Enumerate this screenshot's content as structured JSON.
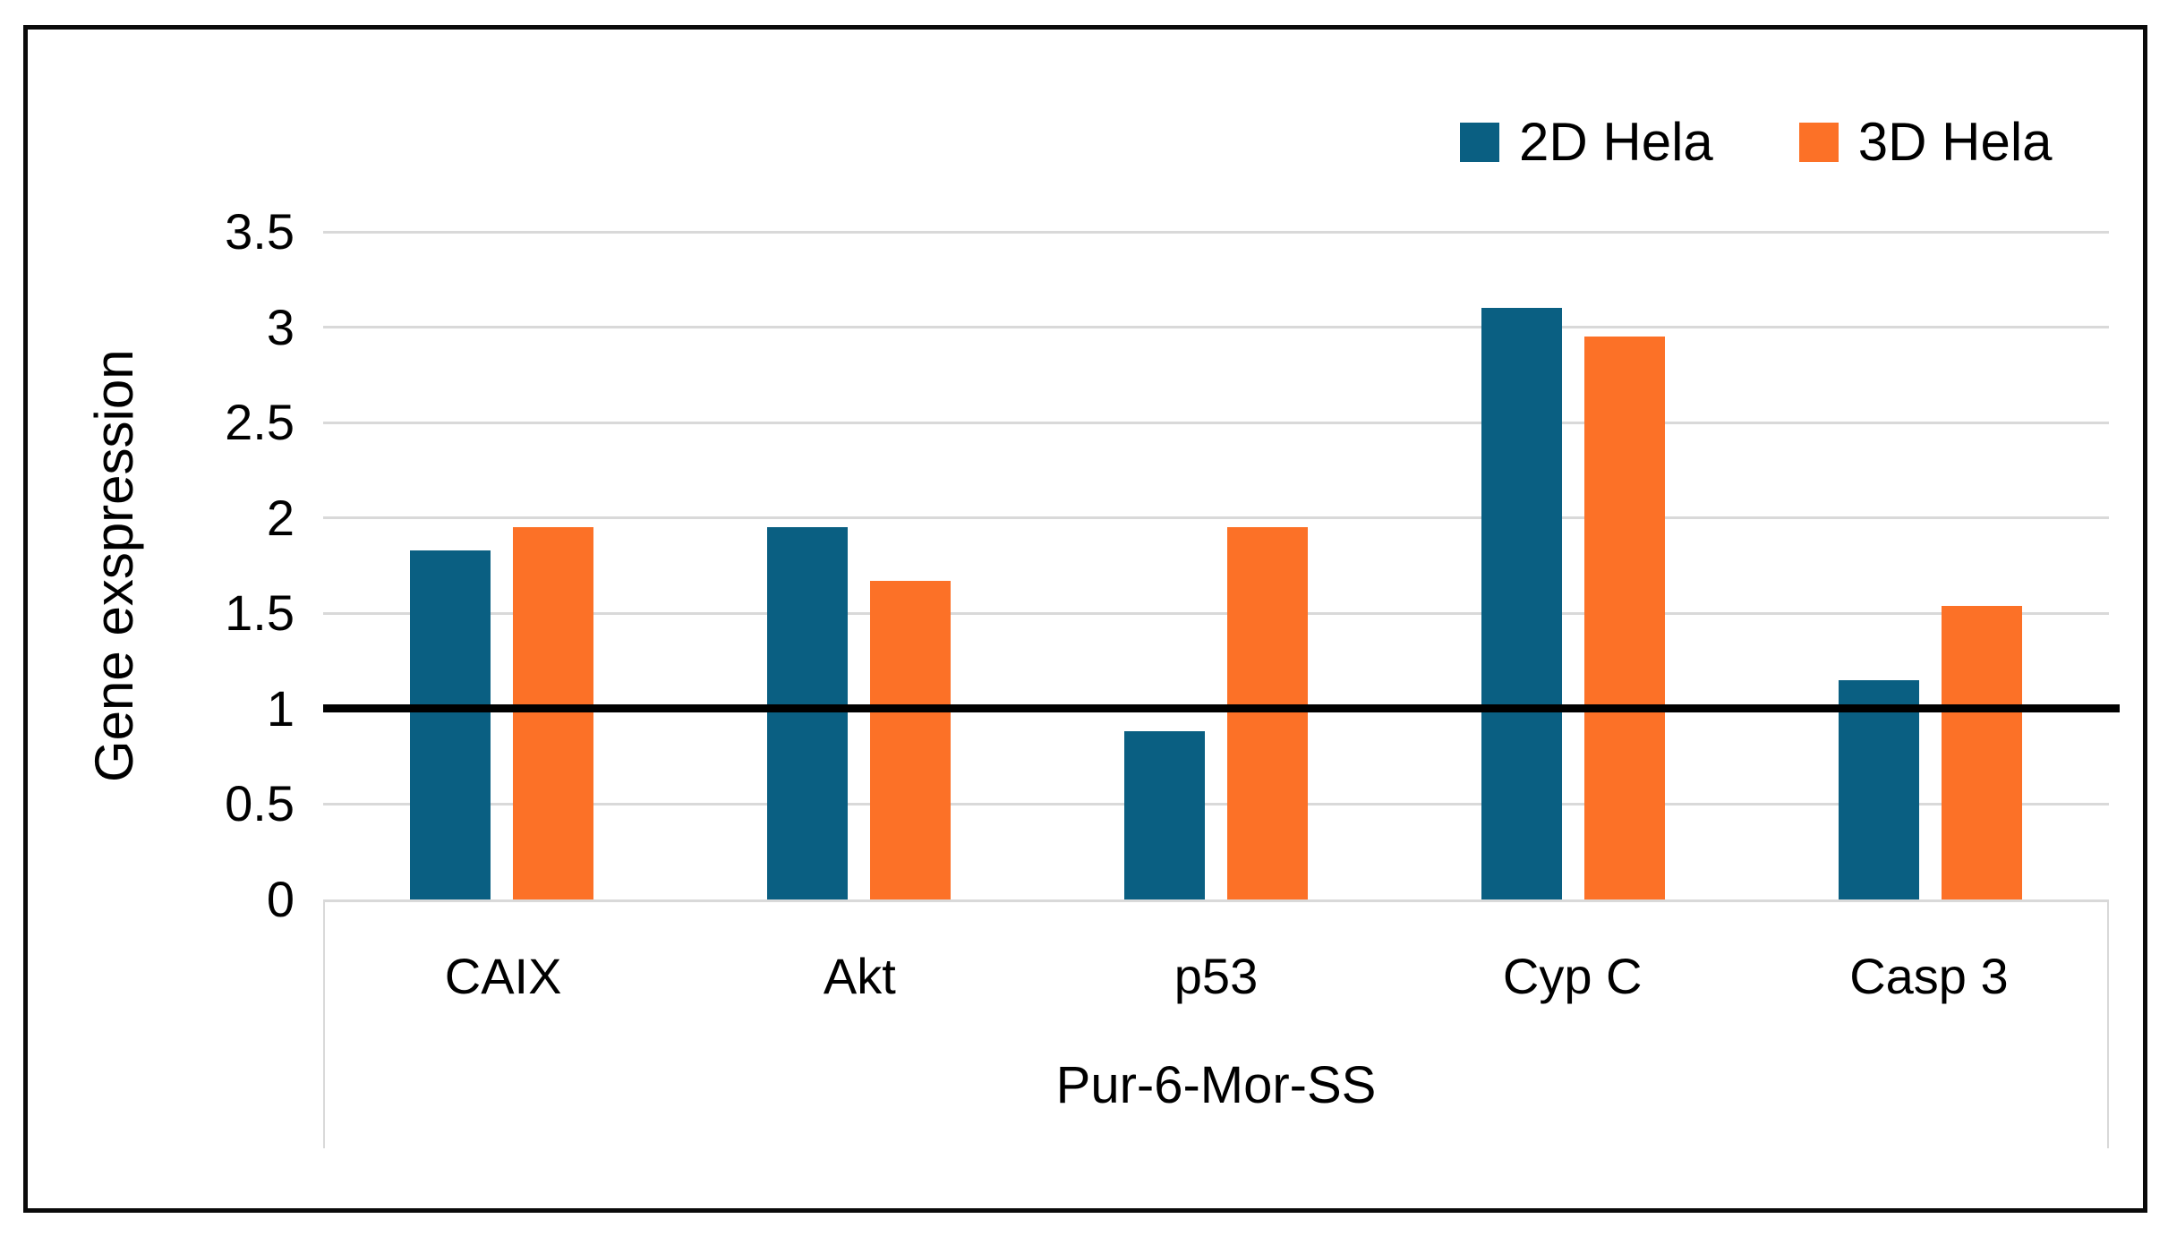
{
  "colors": {
    "series_2d": "#0A5F82",
    "series_3d": "#FC7127",
    "gridline": "#D9D9D9",
    "reference_line": "#000000",
    "frame_border": "#0A0A0A",
    "text": "#000000"
  },
  "chart_data": {
    "type": "bar",
    "title": "",
    "categories": [
      "CAIX",
      "Akt",
      "p53",
      "Cyp C",
      "Casp 3"
    ],
    "series": [
      {
        "name": "2D Hela",
        "color": "#0A5F82",
        "values": [
          1.83,
          1.95,
          0.88,
          3.1,
          1.15
        ]
      },
      {
        "name": "3D Hela",
        "color": "#FC7127",
        "values": [
          1.95,
          1.67,
          1.95,
          2.95,
          1.54
        ]
      }
    ],
    "xlabel": "Pur-6-Mor-SS",
    "ylabel": "Gene exspression",
    "ylim": [
      0,
      3.5
    ],
    "yticks": [
      {
        "label": "3.5",
        "value": 3.5
      },
      {
        "label": "3",
        "value": 3.0
      },
      {
        "label": "2.5",
        "value": 2.5
      },
      {
        "label": "2",
        "value": 2.0
      },
      {
        "label": "1.5",
        "value": 1.5
      },
      {
        "label": "1",
        "value": 1.0
      },
      {
        "label": "0.5",
        "value": 0.5
      },
      {
        "label": "0",
        "value": 0.0
      }
    ],
    "reference_line_value": 1.0,
    "grid": true,
    "legend_position": "top-right"
  }
}
